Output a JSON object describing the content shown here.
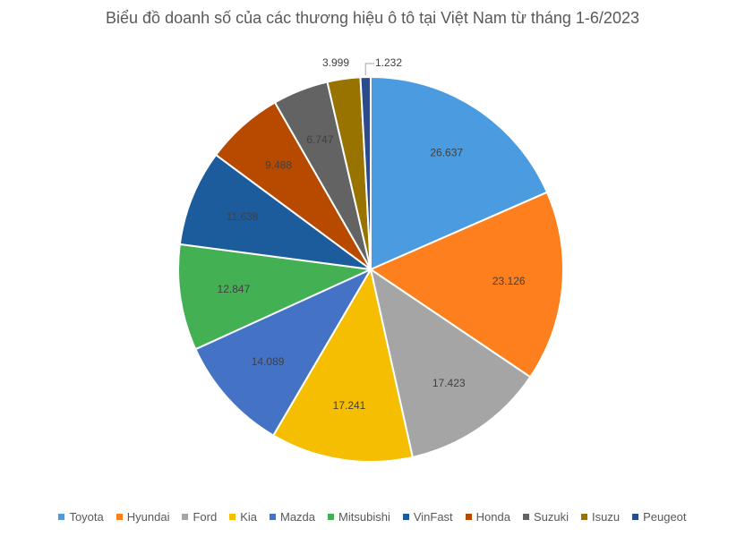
{
  "chart_data": {
    "type": "pie",
    "title": "Biểu đồ doanh số của các thương hiệu ô tô tại Việt Nam từ tháng 1-6/2023",
    "categories": [
      "Toyota",
      "Hyundai",
      "Ford",
      "Kia",
      "Mazda",
      "Mitsubishi",
      "VinFast",
      "Honda",
      "Suzuki",
      "Isuzu",
      "Peugeot"
    ],
    "values": [
      26637,
      23126,
      17423,
      17241,
      14089,
      12847,
      11638,
      9488,
      6747,
      3999,
      1232
    ],
    "data_labels": [
      "26.637",
      "23.126",
      "17.423",
      "17.241",
      "14.089",
      "12.847",
      "11.638",
      "9.488",
      "6.747",
      "3.999",
      "1.232"
    ],
    "colors": [
      "#4a9be0",
      "#fd7f1e",
      "#a5a5a5",
      "#f6be00",
      "#4472c4",
      "#43b054",
      "#1c5c9c",
      "#b84a00",
      "#636363",
      "#987300",
      "#2b4b8c"
    ],
    "legend_position": "bottom",
    "start_angle": "12 o'clock, clockwise"
  }
}
